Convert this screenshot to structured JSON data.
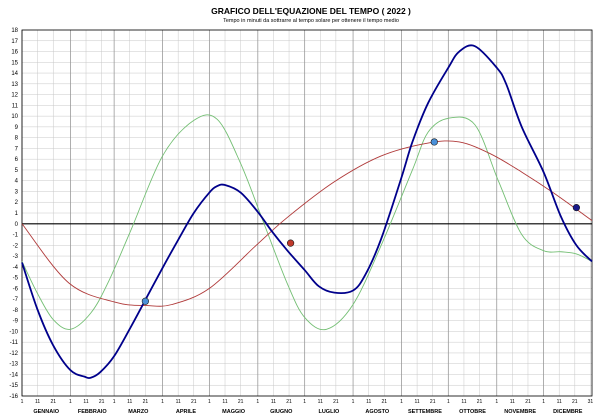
{
  "chart_data": {
    "type": "line",
    "title": "GRAFICO DELL'EQUAZIONE DEL TEMPO ( 2022 )",
    "subtitle": "Tempo in minuti da sottrarre al tempo solare per ottenere il tempo medio",
    "xlabel": "",
    "ylabel": "",
    "xlim": [
      0,
      365
    ],
    "ylim": [
      -16,
      18
    ],
    "y_ticks": [
      18,
      17,
      16,
      15,
      14,
      13,
      12,
      11,
      10,
      9,
      8,
      7,
      6,
      5,
      4,
      3,
      2,
      1,
      0,
      -1,
      -2,
      -3,
      -4,
      -5,
      -6,
      -7,
      -8,
      -9,
      -10,
      -11,
      -12,
      -13,
      -14,
      -15,
      -16
    ],
    "grid": true,
    "months": [
      {
        "label": "GENNAIO",
        "start_day": 0
      },
      {
        "label": "FEBBRAIO",
        "start_day": 31
      },
      {
        "label": "MARZO",
        "start_day": 59
      },
      {
        "label": "APRILE",
        "start_day": 90
      },
      {
        "label": "MAGGIO",
        "start_day": 120
      },
      {
        "label": "GIUGNO",
        "start_day": 151
      },
      {
        "label": "LUGLIO",
        "start_day": 181
      },
      {
        "label": "AGOSTO",
        "start_day": 212
      },
      {
        "label": "SETTEMBRE",
        "start_day": 243
      },
      {
        "label": "OTTOBRE",
        "start_day": 273
      },
      {
        "label": "NOVEMBRE",
        "start_day": 304
      },
      {
        "label": "DICEMBRE",
        "start_day": 334
      }
    ],
    "x_tick_labels": [
      "1",
      "11",
      "21",
      "1",
      "11",
      "21",
      "1",
      "11",
      "21",
      "1",
      "11",
      "21",
      "1",
      "11",
      "21",
      "1",
      "11",
      "21",
      "1",
      "11",
      "21",
      "1",
      "11",
      "21",
      "1",
      "11",
      "21",
      "1",
      "11",
      "21",
      "1",
      "11",
      "21",
      "1",
      "11",
      "21",
      "31"
    ],
    "series": [
      {
        "name": "",
        "color": "#00008b",
        "x": [
          0,
          10,
          20,
          31,
          40,
          44,
          50,
          59,
          70,
          80,
          90,
          100,
          110,
          120,
          125,
          130,
          140,
          151,
          160,
          170,
          181,
          190,
          200,
          212,
          220,
          230,
          243,
          250,
          260,
          273,
          280,
          290,
          304,
          310,
          320,
          334,
          345,
          355,
          365
        ],
        "y": [
          -3.6,
          -8.0,
          -11.3,
          -13.6,
          -14.2,
          -14.3,
          -13.8,
          -12.3,
          -9.5,
          -6.8,
          -4.1,
          -1.5,
          1.0,
          2.9,
          3.5,
          3.6,
          2.9,
          1.1,
          -0.7,
          -2.5,
          -4.3,
          -5.8,
          -6.4,
          -6.2,
          -4.7,
          -1.4,
          4.3,
          7.6,
          11.2,
          14.5,
          16.0,
          16.5,
          14.5,
          13.0,
          9.0,
          4.8,
          0.7,
          -2.0,
          -3.5
        ]
      },
      {
        "name": "",
        "color": "#74bf74",
        "x": [
          0,
          10,
          20,
          31,
          44,
          55,
          70,
          90,
          110,
          125,
          140,
          155,
          170,
          181,
          195,
          212,
          230,
          250,
          260,
          273,
          290,
          305,
          320,
          334,
          345,
          355,
          365
        ],
        "y": [
          -3.5,
          -6.5,
          -8.9,
          -9.8,
          -8.3,
          -5.5,
          -0.5,
          6.3,
          9.6,
          9.7,
          5.6,
          0.0,
          -5.6,
          -8.7,
          -9.8,
          -7.5,
          -2.0,
          5.0,
          8.5,
          9.8,
          9.2,
          4.0,
          -1.0,
          -2.5,
          -2.6,
          -2.8,
          -3.5
        ]
      },
      {
        "name": "",
        "color": "#b03a3a",
        "x": [
          0,
          30,
          60,
          80,
          96,
          120,
          150,
          170,
          200,
          230,
          260,
          280,
          300,
          320,
          340,
          365
        ],
        "y": [
          0.0,
          -5.5,
          -7.3,
          -7.6,
          -7.5,
          -6.0,
          -2.0,
          0.6,
          3.9,
          6.3,
          7.5,
          7.6,
          6.5,
          4.8,
          2.9,
          0.3
        ]
      }
    ],
    "markers": [
      {
        "x": 79,
        "y": -7.2,
        "color": "#4a90d9"
      },
      {
        "x": 172,
        "y": -1.8,
        "color": "#c0392b"
      },
      {
        "x": 264,
        "y": 7.6,
        "color": "#4a90d9"
      },
      {
        "x": 355,
        "y": 1.5,
        "color": "#1a1a8a"
      }
    ],
    "colors": {
      "grid": "#c8c8c8",
      "zero_line": "#000000",
      "axis": "#000000"
    }
  }
}
